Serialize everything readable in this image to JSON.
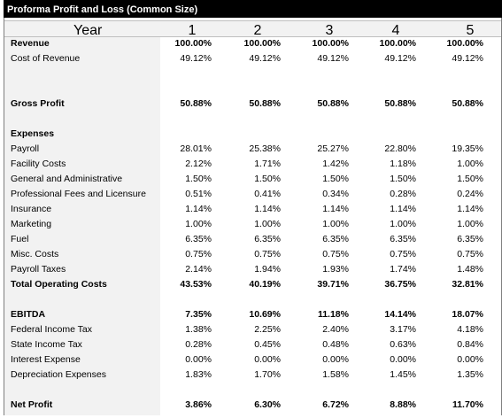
{
  "title": "Proforma Profit and Loss (Common Size)",
  "header": {
    "label": "Year",
    "years": [
      "1",
      "2",
      "3",
      "4",
      "5"
    ]
  },
  "rows": [
    {
      "label": "Revenue",
      "bold": true,
      "values": [
        "100.00%",
        "100.00%",
        "100.00%",
        "100.00%",
        "100.00%"
      ]
    },
    {
      "label": "Cost of Revenue",
      "bold": false,
      "values": [
        "49.12%",
        "49.12%",
        "49.12%",
        "49.12%",
        "49.12%"
      ]
    },
    {
      "label": "Gross Profit",
      "bold": true,
      "values": [
        "50.88%",
        "50.88%",
        "50.88%",
        "50.88%",
        "50.88%"
      ]
    },
    {
      "label": "Expenses",
      "bold": true,
      "values": [
        "",
        "",
        "",
        "",
        ""
      ]
    },
    {
      "label": "Payroll",
      "bold": false,
      "values": [
        "28.01%",
        "25.38%",
        "25.27%",
        "22.80%",
        "19.35%"
      ]
    },
    {
      "label": "Facility Costs",
      "bold": false,
      "values": [
        "2.12%",
        "1.71%",
        "1.42%",
        "1.18%",
        "1.00%"
      ]
    },
    {
      "label": "General and Administrative",
      "bold": false,
      "values": [
        "1.50%",
        "1.50%",
        "1.50%",
        "1.50%",
        "1.50%"
      ]
    },
    {
      "label": "Professional Fees and Licensure",
      "bold": false,
      "values": [
        "0.51%",
        "0.41%",
        "0.34%",
        "0.28%",
        "0.24%"
      ]
    },
    {
      "label": "Insurance",
      "bold": false,
      "values": [
        "1.14%",
        "1.14%",
        "1.14%",
        "1.14%",
        "1.14%"
      ]
    },
    {
      "label": "Marketing",
      "bold": false,
      "values": [
        "1.00%",
        "1.00%",
        "1.00%",
        "1.00%",
        "1.00%"
      ]
    },
    {
      "label": "Fuel",
      "bold": false,
      "values": [
        "6.35%",
        "6.35%",
        "6.35%",
        "6.35%",
        "6.35%"
      ]
    },
    {
      "label": "Misc. Costs",
      "bold": false,
      "values": [
        "0.75%",
        "0.75%",
        "0.75%",
        "0.75%",
        "0.75%"
      ]
    },
    {
      "label": "Payroll Taxes",
      "bold": false,
      "values": [
        "2.14%",
        "1.94%",
        "1.93%",
        "1.74%",
        "1.48%"
      ]
    },
    {
      "label": "Total Operating Costs",
      "bold": true,
      "values": [
        "43.53%",
        "40.19%",
        "39.71%",
        "36.75%",
        "32.81%"
      ]
    },
    {
      "label": "EBITDA",
      "bold": true,
      "values": [
        "7.35%",
        "10.69%",
        "11.18%",
        "14.14%",
        "18.07%"
      ]
    },
    {
      "label": "Federal Income Tax",
      "bold": false,
      "values": [
        "1.38%",
        "2.25%",
        "2.40%",
        "3.17%",
        "4.18%"
      ]
    },
    {
      "label": "State Income Tax",
      "bold": false,
      "values": [
        "0.28%",
        "0.45%",
        "0.48%",
        "0.63%",
        "0.84%"
      ]
    },
    {
      "label": "Interest Expense",
      "bold": false,
      "values": [
        "0.00%",
        "0.00%",
        "0.00%",
        "0.00%",
        "0.00%"
      ]
    },
    {
      "label": "Depreciation Expenses",
      "bold": false,
      "values": [
        "1.83%",
        "1.70%",
        "1.58%",
        "1.45%",
        "1.35%"
      ]
    },
    {
      "label": "Net Profit",
      "bold": true,
      "values": [
        "3.86%",
        "6.30%",
        "6.72%",
        "8.88%",
        "11.70%"
      ]
    }
  ]
}
